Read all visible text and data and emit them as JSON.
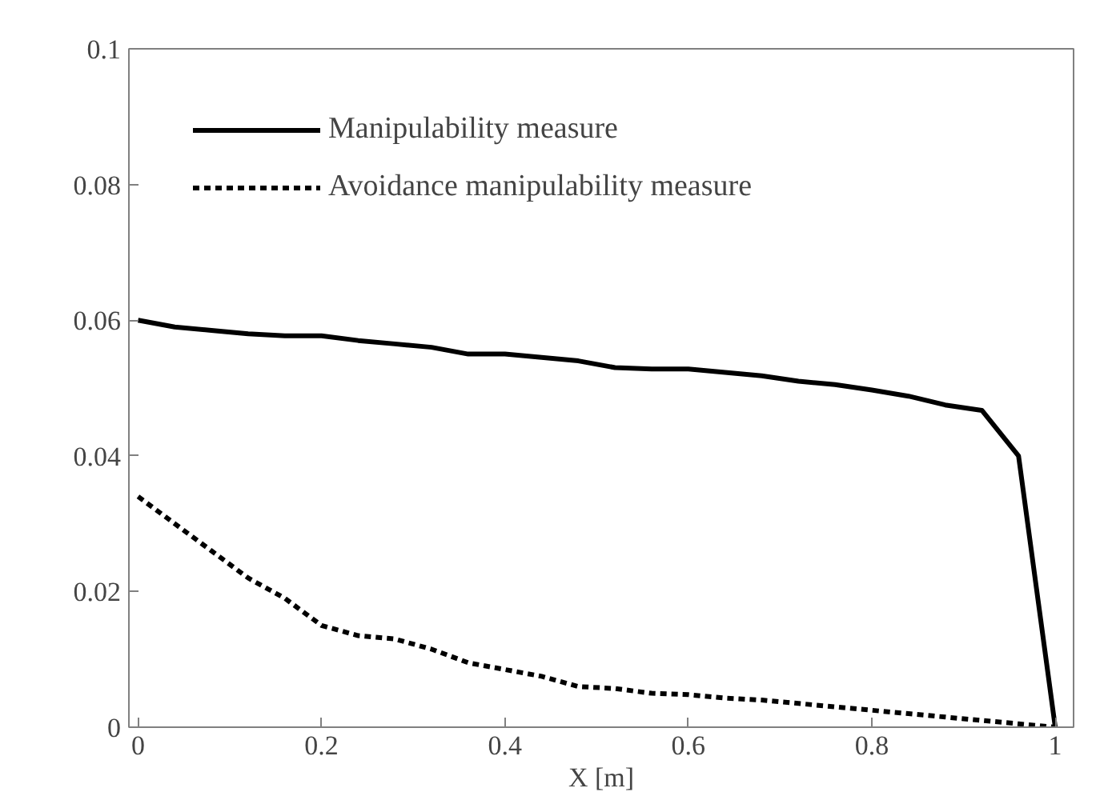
{
  "chart_data": {
    "type": "line",
    "xlabel": "X [m]",
    "x": [
      0,
      0.04,
      0.08,
      0.12,
      0.16,
      0.2,
      0.24,
      0.28,
      0.32,
      0.36,
      0.4,
      0.44,
      0.48,
      0.52,
      0.56,
      0.6,
      0.64,
      0.68,
      0.72,
      0.76,
      0.8,
      0.84,
      0.88,
      0.92,
      0.96,
      1
    ],
    "series": [
      {
        "name": "Manipulability measure",
        "color": "#000000",
        "line_style": "solid",
        "values": [
          0.06,
          0.059,
          0.0585,
          0.058,
          0.0577,
          0.0577,
          0.057,
          0.0565,
          0.056,
          0.055,
          0.055,
          0.0545,
          0.054,
          0.053,
          0.0528,
          0.0528,
          0.0523,
          0.0518,
          0.051,
          0.0505,
          0.0497,
          0.0488,
          0.0475,
          0.0467,
          0.04,
          0.0
        ]
      },
      {
        "name": "Avoidance manipulability measure",
        "color": "#000000",
        "line_style": "dotted",
        "values": [
          0.034,
          0.03,
          0.026,
          0.022,
          0.019,
          0.015,
          0.0135,
          0.013,
          0.0115,
          0.0095,
          0.0085,
          0.0075,
          0.006,
          0.0057,
          0.005,
          0.0048,
          0.0043,
          0.004,
          0.0035,
          0.003,
          0.0025,
          0.002,
          0.0015,
          0.001,
          0.0005,
          0.0
        ]
      }
    ],
    "xlim": [
      -0.01,
      1.02
    ],
    "ylim": [
      0,
      0.1
    ],
    "xticks": [
      0,
      0.2,
      0.4,
      0.6,
      0.8,
      1
    ],
    "yticks": [
      0,
      0.02,
      0.04,
      0.06,
      0.08,
      0.1
    ],
    "grid": false,
    "legend": "top left",
    "marker": "none"
  }
}
